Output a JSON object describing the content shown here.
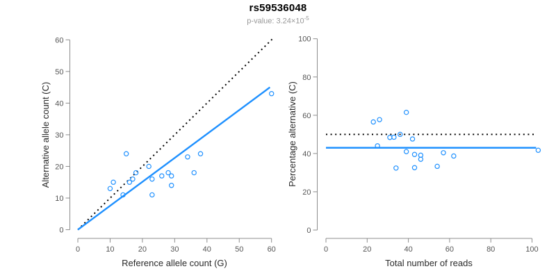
{
  "header": {
    "title": "rs59536048",
    "subtitle_base": "p-value: 3.24×10",
    "subtitle_exponent": "-5"
  },
  "colors": {
    "accent_blue": "#1E90FF",
    "dotted_line_color": "#000000",
    "axis_line_color": "#8c8c8c",
    "tick_label_color": "#555555",
    "subtitle_color": "#979797"
  },
  "chart_data": [
    {
      "type": "scatter",
      "xlabel": "Reference allele count (G)",
      "ylabel": "Alternative allele count (C)",
      "xlim": [
        0,
        60
      ],
      "ylim": [
        0,
        60
      ],
      "xticks": [
        0,
        10,
        20,
        30,
        40,
        50,
        60
      ],
      "yticks": [
        0,
        10,
        20,
        30,
        40,
        50,
        60
      ],
      "grid": false,
      "legend": null,
      "points": [
        [
          10,
          13
        ],
        [
          11,
          15
        ],
        [
          14,
          11
        ],
        [
          15,
          24
        ],
        [
          16,
          15
        ],
        [
          17,
          16
        ],
        [
          18,
          18
        ],
        [
          22,
          20
        ],
        [
          23,
          11
        ],
        [
          23,
          16
        ],
        [
          26,
          17
        ],
        [
          28,
          18
        ],
        [
          29,
          14
        ],
        [
          29,
          17
        ],
        [
          34,
          23
        ],
        [
          36,
          18
        ],
        [
          38,
          24
        ],
        [
          60,
          43
        ]
      ],
      "lines": [
        {
          "name": "identity-line",
          "style": "dotted",
          "color": "#000000",
          "from": [
            0,
            0
          ],
          "to": [
            60.5,
            60.5
          ]
        },
        {
          "name": "fit-line",
          "style": "solid",
          "color": "#1E90FF",
          "from": [
            0,
            0
          ],
          "to": [
            59.5,
            45
          ]
        }
      ]
    },
    {
      "type": "scatter",
      "xlabel": "Total number of reads",
      "ylabel": "Percentage alternative (C)",
      "xlim": [
        0,
        100
      ],
      "ylim": [
        0,
        100
      ],
      "xticks": [
        0,
        20,
        40,
        60,
        80,
        100
      ],
      "yticks": [
        0,
        20,
        40,
        60,
        80,
        100
      ],
      "grid": false,
      "legend": null,
      "points": [
        [
          23,
          56.5
        ],
        [
          25,
          44.0
        ],
        [
          26,
          57.7
        ],
        [
          31,
          48.4
        ],
        [
          33,
          48.5
        ],
        [
          34,
          32.4
        ],
        [
          36,
          50.0
        ],
        [
          39,
          41.0
        ],
        [
          39,
          61.5
        ],
        [
          42,
          47.6
        ],
        [
          43,
          32.6
        ],
        [
          43,
          39.5
        ],
        [
          46,
          37.0
        ],
        [
          46,
          39.1
        ],
        [
          54,
          33.3
        ],
        [
          57,
          40.4
        ],
        [
          62,
          38.7
        ],
        [
          103,
          41.7
        ]
      ],
      "lines": [
        {
          "name": "fifty-percent-line",
          "style": "dotted",
          "color": "#000000",
          "from": [
            0,
            50
          ],
          "to": [
            101,
            50
          ]
        },
        {
          "name": "mean-percentage-line",
          "style": "solid",
          "color": "#1E90FF",
          "from": [
            0,
            43
          ],
          "to": [
            102,
            43
          ]
        }
      ]
    }
  ]
}
